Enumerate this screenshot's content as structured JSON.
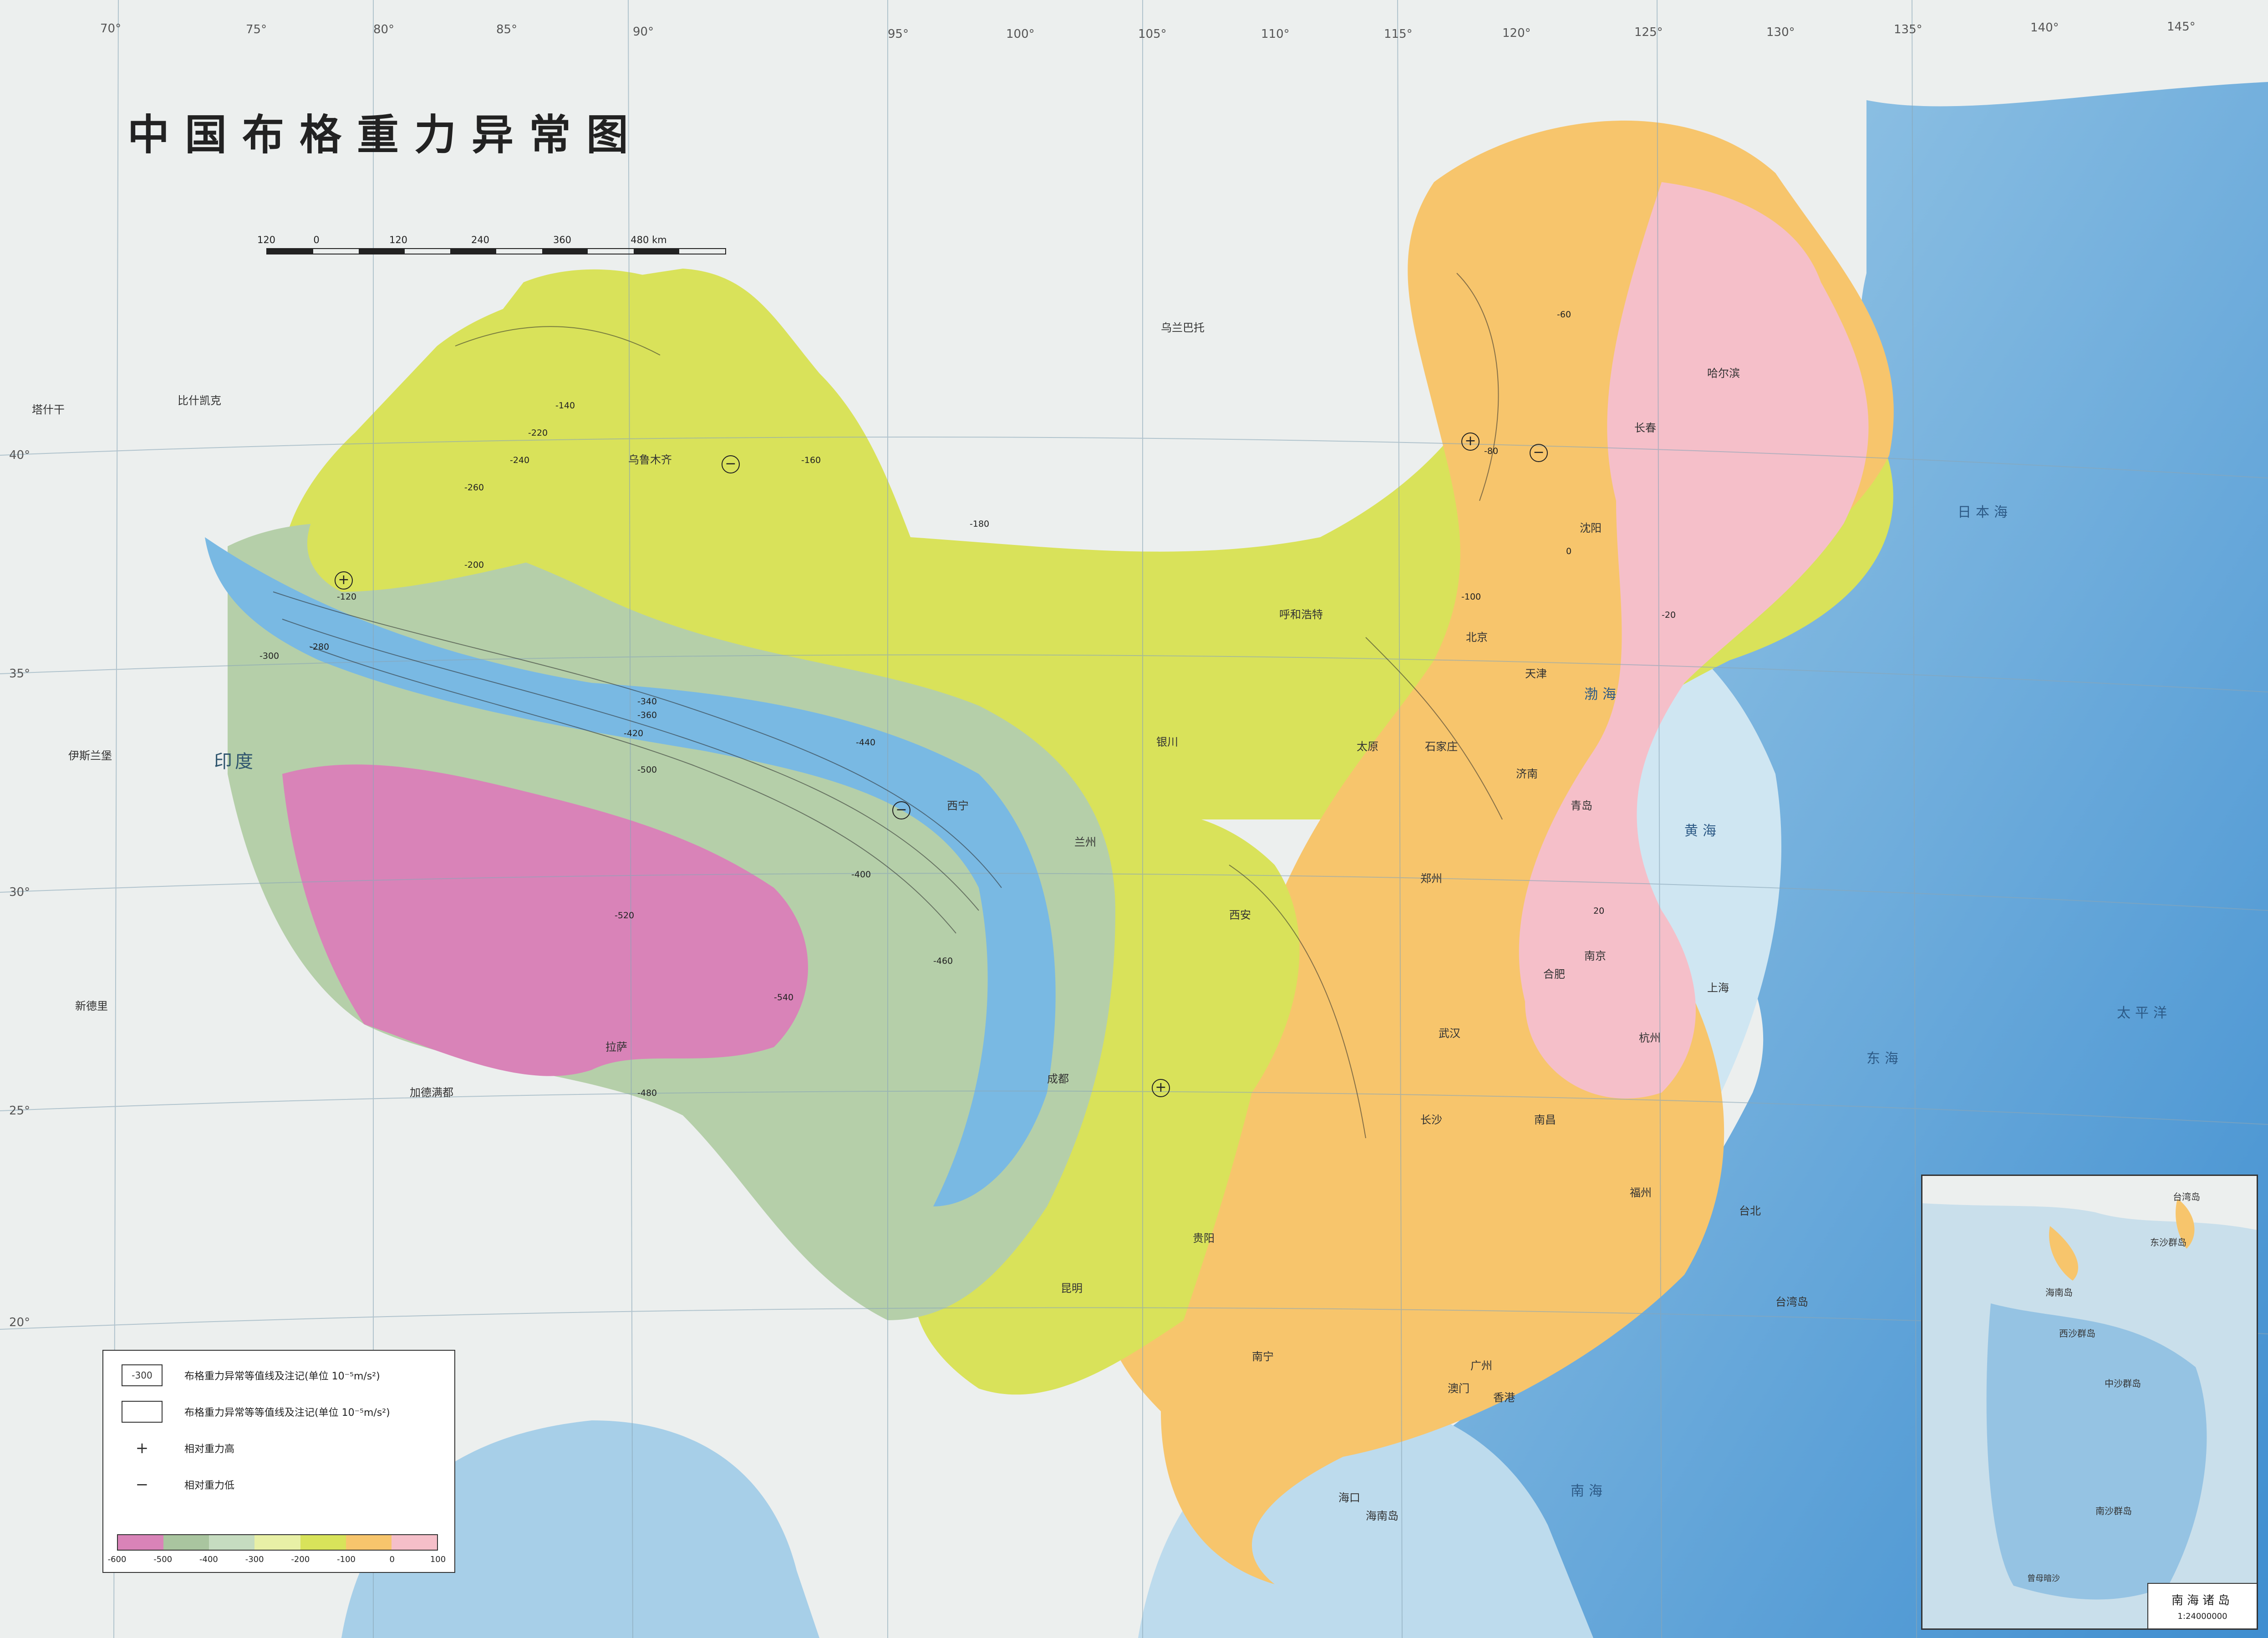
{
  "title": "中国布格重力异常图",
  "scalebar": {
    "ticks": [
      "120",
      "0",
      "120",
      "240",
      "360",
      "480 km"
    ]
  },
  "legend": {
    "items": [
      {
        "symbol_text": "-300",
        "label": "布格重力异常等值线及注记(单位 10⁻⁵m/s²)"
      },
      {
        "symbol_text": "",
        "label": "布格重力异常等等值线及注记(单位 10⁻⁵m/s²)"
      },
      {
        "symbol_text": "+",
        "label": "相对重力高"
      },
      {
        "symbol_text": "−",
        "label": "相对重力低"
      }
    ],
    "ramp_colors": [
      "#d983b8",
      "#a9c59f",
      "#c6dcc0",
      "#e8f0a6",
      "#d8e35a",
      "#f7c56c",
      "#f5bfc9"
    ],
    "ramp_labels": [
      "-600",
      "-500",
      "-400",
      "-300",
      "-200",
      "-100",
      "0",
      "100"
    ]
  },
  "inset": {
    "name": "南海诸岛",
    "scale": "1:24000000",
    "labels": [
      "台湾岛",
      "东沙群岛",
      "海南岛",
      "西沙群岛",
      "中沙群岛",
      "南沙群岛",
      "曾母暗沙"
    ]
  },
  "longitudes": [
    "70°",
    "75°",
    "80°",
    "85°",
    "90°",
    "95°",
    "100°",
    "105°",
    "110°",
    "115°",
    "120°",
    "125°",
    "130°",
    "135°",
    "140°",
    "145°"
  ],
  "latitudes": [
    "40°",
    "35°",
    "30°",
    "25°",
    "20°"
  ],
  "place_labels": [
    "乌兰巴托",
    "塔什干",
    "比什凯克",
    "伊斯兰堡",
    "新德里",
    "加德满都",
    "印度",
    "哈尔滨",
    "长春",
    "沈阳",
    "北京",
    "天津",
    "济南",
    "郑州",
    "西安",
    "兰州",
    "西宁",
    "银川",
    "呼和浩特",
    "太原",
    "石家庄",
    "武汉",
    "长沙",
    "南昌",
    "杭州",
    "南京",
    "合肥",
    "上海",
    "福州",
    "台北",
    "广州",
    "香港",
    "澳门",
    "南宁",
    "贵阳",
    "昆明",
    "成都",
    "拉萨",
    "乌鲁木齐",
    "海口",
    "青岛",
    "海南岛",
    "台湾岛"
  ],
  "sea_labels": [
    "渤海",
    "黄海",
    "东海",
    "南海",
    "日本海",
    "太平洋"
  ],
  "contour_labels": [
    "-60",
    "-80",
    "-100",
    "-120",
    "-140",
    "-160",
    "-180",
    "-200",
    "-220",
    "-240",
    "-260",
    "-280",
    "-300",
    "-340",
    "-360",
    "-400",
    "-420",
    "-440",
    "-460",
    "-480",
    "-500",
    "-520",
    "-540",
    "-20",
    "0",
    "20"
  ]
}
